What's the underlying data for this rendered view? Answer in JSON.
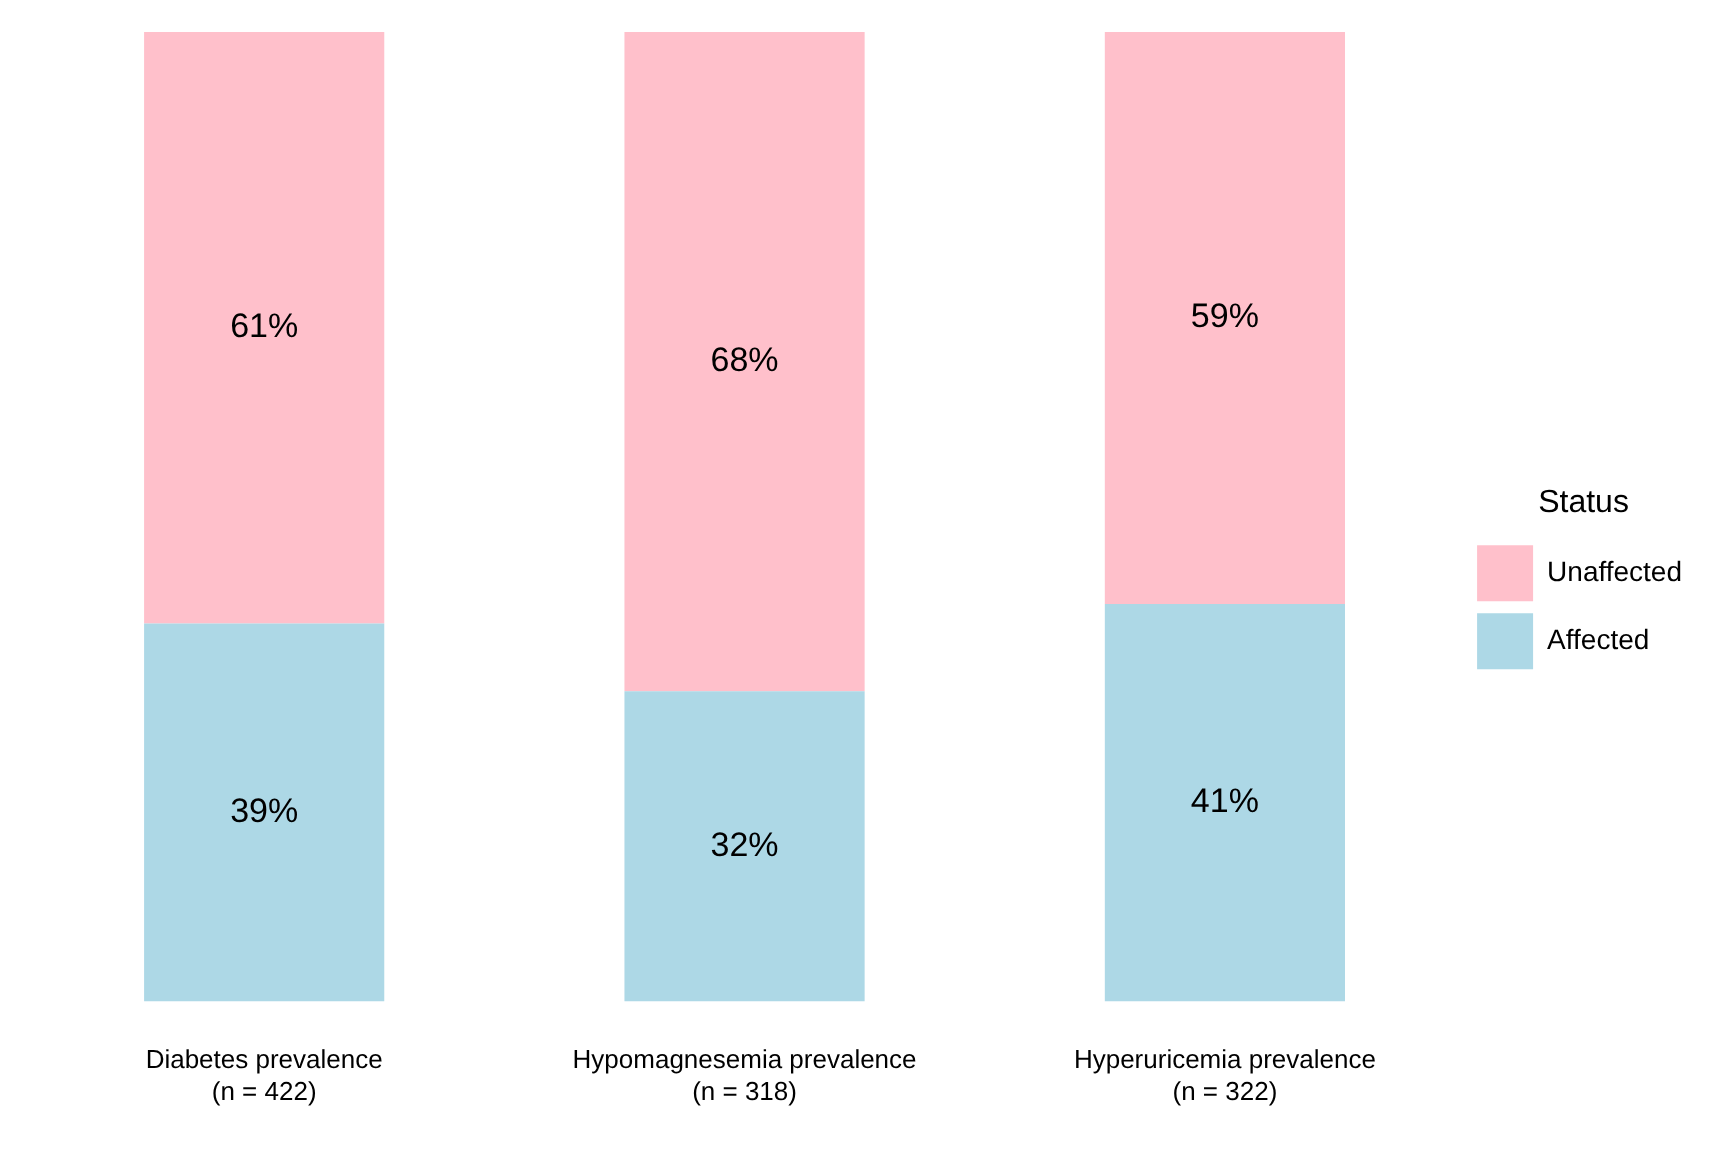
{
  "chart_data": {
    "type": "bar",
    "stacked": true,
    "legend": "right",
    "legend_title": "Status",
    "tick_labels": "x",
    "ylim": [
      0,
      100
    ],
    "categories": [
      "Diabetes prevalence\n(n = 422)",
      "Hypomagnesemia prevalence\n(n = 318)",
      "Hyperuricemia prevalence\n(n = 322)"
    ],
    "series": [
      {
        "name": "Affected",
        "color": "#add8e6",
        "values": [
          39,
          32,
          41
        ],
        "value_labels": [
          "39%",
          "32%",
          "41%"
        ]
      },
      {
        "name": "Unaffected",
        "color": "#ffc0cb",
        "values": [
          61,
          68,
          59
        ],
        "value_labels": [
          "61%",
          "68%",
          "59%"
        ]
      }
    ]
  }
}
